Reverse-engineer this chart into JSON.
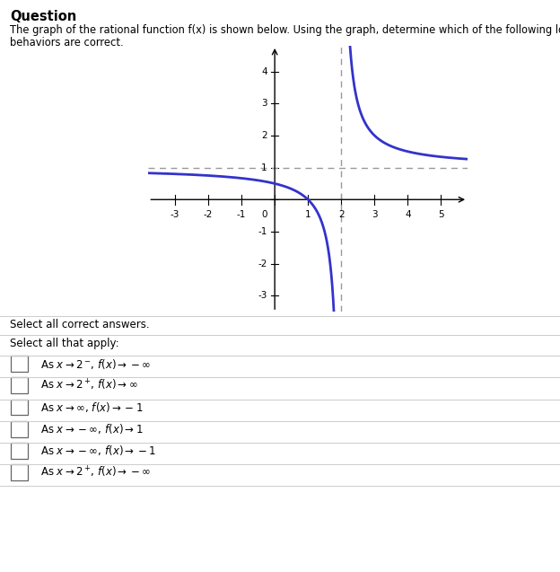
{
  "title": "Question",
  "question_text": "The graph of the rational function f​(x) is shown below. Using the graph, determine which of the following local and end behaviors are correct.",
  "select_text": "Select all correct answers.",
  "select_all_text": "Select all that apply:",
  "vertical_asymptote": 2,
  "horizontal_asymptote": 1,
  "xlim": [
    -3.8,
    5.8
  ],
  "ylim": [
    -3.5,
    4.8
  ],
  "xticks": [
    -3,
    -2,
    -1,
    0,
    1,
    2,
    3,
    4,
    5
  ],
  "yticks": [
    -3,
    -2,
    -1,
    0,
    1,
    2,
    3,
    4
  ],
  "curve_color": "#3333cc",
  "asymptote_color": "#999999",
  "bg_color": "#ffffff",
  "curve_linewidth": 2.0,
  "asymptote_linewidth": 1.0,
  "choices": [
    "As $x \\to 2^-\\!,\\, f(x) \\to -\\infty$",
    "As $x \\to 2^+\\!,\\, f(x) \\to \\infty$",
    "As $x \\to \\infty,\\, f(x) \\to -1$",
    "As $x \\to -\\infty,\\, f(x) \\to 1$",
    "As $x \\to -\\infty,\\, f(x) \\to -1$",
    "As $x \\to 2^+\\!,\\, f(x) \\to -\\infty$"
  ]
}
